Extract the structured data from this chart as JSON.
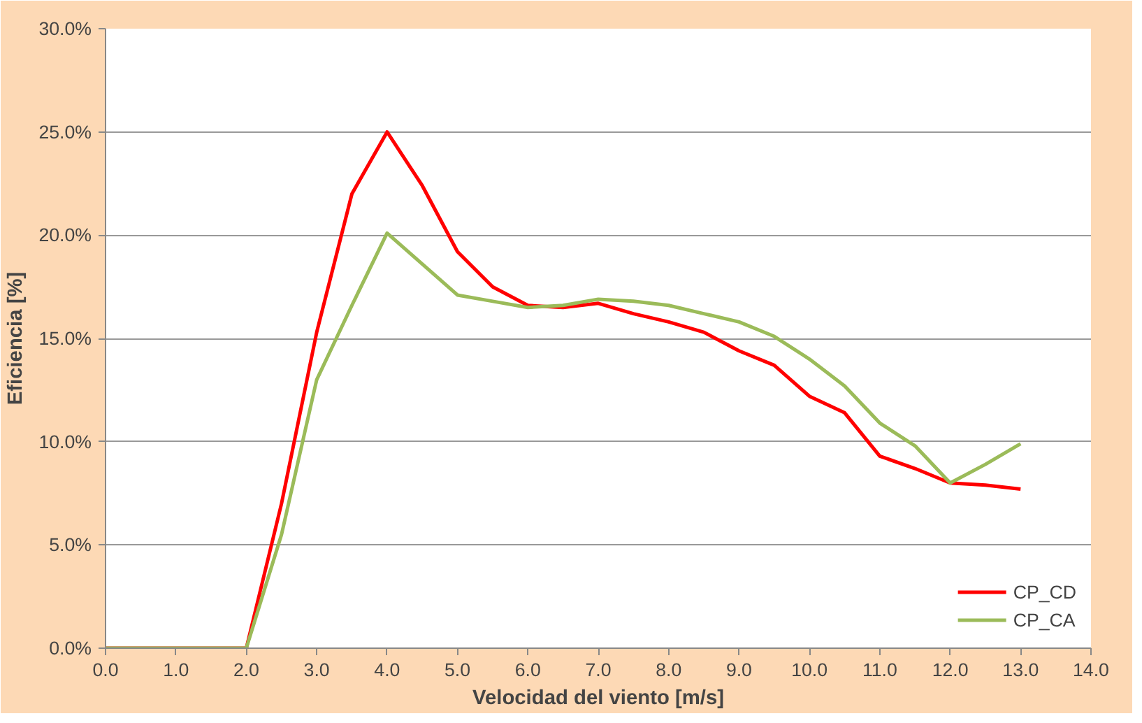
{
  "chart_data": {
    "type": "line",
    "xlabel": "Velocidad del viento [m/s]",
    "ylabel": "Eficiencia [%]",
    "x": [
      0,
      1,
      2,
      2.5,
      3,
      3.5,
      4,
      4.5,
      5,
      5.5,
      6,
      6.5,
      7,
      7.5,
      8,
      8.5,
      9,
      9.5,
      10,
      10.5,
      11,
      11.5,
      12,
      12.5,
      13
    ],
    "series": [
      {
        "name": "CP_CD",
        "color": "#ff0000",
        "values": [
          0,
          0,
          0,
          7.0,
          15.3,
          22.0,
          25.0,
          22.4,
          19.2,
          17.5,
          16.6,
          16.5,
          16.7,
          16.2,
          15.8,
          15.3,
          14.4,
          13.7,
          12.2,
          11.4,
          9.3,
          8.7,
          8.0,
          7.9,
          7.7
        ]
      },
      {
        "name": "CP_CA",
        "color": "#9bbb59",
        "values": [
          0,
          0,
          0,
          5.5,
          13.0,
          16.6,
          20.1,
          18.6,
          17.1,
          16.8,
          16.5,
          16.6,
          16.9,
          16.8,
          16.6,
          16.2,
          15.8,
          15.1,
          14.0,
          12.7,
          10.9,
          9.8,
          8.0,
          8.9,
          9.9
        ]
      }
    ],
    "xlim": [
      0,
      14
    ],
    "ylim": [
      0,
      30
    ],
    "xticks": [
      {
        "value": 0,
        "label": "0.0"
      },
      {
        "value": 1,
        "label": "1.0"
      },
      {
        "value": 2,
        "label": "2.0"
      },
      {
        "value": 3,
        "label": "3.0"
      },
      {
        "value": 4,
        "label": "4.0"
      },
      {
        "value": 5,
        "label": "5.0"
      },
      {
        "value": 6,
        "label": "6.0"
      },
      {
        "value": 7,
        "label": "7.0"
      },
      {
        "value": 8,
        "label": "8.0"
      },
      {
        "value": 9,
        "label": "9.0"
      },
      {
        "value": 10,
        "label": "10.0"
      },
      {
        "value": 11,
        "label": "11.0"
      },
      {
        "value": 12,
        "label": "12.0"
      },
      {
        "value": 13,
        "label": "13.0"
      },
      {
        "value": 14,
        "label": "14.0"
      }
    ],
    "yticks": [
      {
        "value": 0,
        "label": "0.0%"
      },
      {
        "value": 5,
        "label": "5.0%"
      },
      {
        "value": 10,
        "label": "10.0%"
      },
      {
        "value": 15,
        "label": "15.0%"
      },
      {
        "value": 20,
        "label": "20.0%"
      },
      {
        "value": 25,
        "label": "25.0%"
      },
      {
        "value": 30,
        "label": "30.0%"
      }
    ],
    "grid": "y",
    "legend": "bottom right",
    "marker": "none",
    "line_style": "solid"
  }
}
